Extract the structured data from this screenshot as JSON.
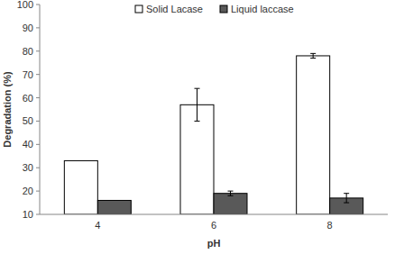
{
  "chart_data": {
    "type": "bar",
    "x_label": "pH",
    "y_label": "Degradation (%)",
    "categories": [
      "4",
      "6",
      "8"
    ],
    "series": [
      {
        "name": "Solid Lacase",
        "color": "#ffffff",
        "values": [
          33,
          57,
          78
        ],
        "errors": [
          null,
          7,
          1
        ]
      },
      {
        "name": "Liquid laccase",
        "color": "#595959",
        "values": [
          16,
          19,
          17
        ],
        "errors": [
          null,
          1,
          2
        ]
      }
    ],
    "ylim": [
      10,
      100
    ],
    "yticks": [
      10,
      20,
      30,
      40,
      50,
      60,
      70,
      80,
      90,
      100
    ],
    "grid": false,
    "legend": "top"
  }
}
